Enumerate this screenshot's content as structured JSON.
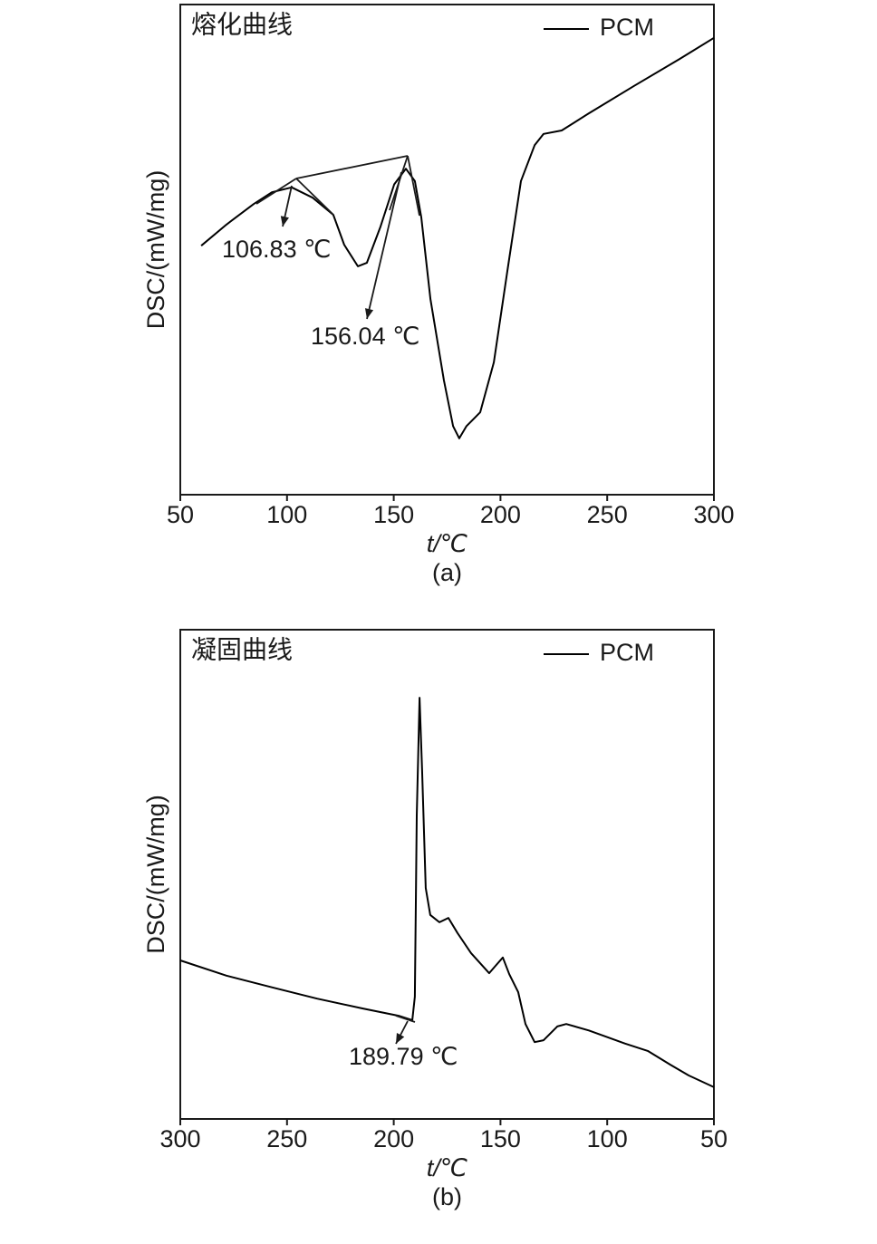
{
  "chart_data": [
    {
      "type": "line",
      "title": "熔化曲线",
      "x_label": "t/℃",
      "y_label": "DSC/(mW/mg)",
      "caption": "(a)",
      "xlim": [
        50,
        300
      ],
      "xticks": [
        50,
        100,
        150,
        200,
        250,
        300
      ],
      "ylim": [
        0,
        100
      ],
      "x": [
        59.8,
        71.6,
        84.4,
        92.9,
        102.2,
        112.0,
        121.7,
        126.8,
        133.2,
        137.4,
        143.8,
        150.2,
        155.7,
        159.9,
        162.9,
        167.2,
        173.5,
        177.8,
        180.7,
        184.1,
        190.5,
        196.9,
        203.2,
        209.6,
        216.0,
        220.2,
        228.7,
        241.4,
        262.6,
        283.9,
        300
      ],
      "series": [
        {
          "name": "PCM",
          "color": "#000000",
          "values": [
            50.8,
            55.1,
            59.3,
            61.7,
            62.7,
            60.6,
            57.1,
            51.0,
            46.6,
            47.3,
            54.7,
            63.3,
            66.5,
            64.0,
            56.6,
            39.9,
            23.3,
            14.0,
            11.5,
            14.0,
            16.8,
            27.0,
            45.5,
            64.0,
            71.3,
            73.6,
            74.3,
            77.8,
            83.4,
            88.9,
            93.2
          ]
        }
      ],
      "annotations": [
        "106.83 ℃",
        "156.04 ℃"
      ],
      "legend": "upper right"
    },
    {
      "type": "line",
      "title": "凝固曲线",
      "x_label": "t/℃",
      "y_label": "DSC/(mW/mg)",
      "caption": "(b)",
      "xlim": [
        300,
        50
      ],
      "xticks": [
        300,
        250,
        200,
        150,
        100,
        50
      ],
      "ylim": [
        0,
        100
      ],
      "x": [
        300,
        278.4,
        257.1,
        235.9,
        214.7,
        197.7,
        191.3,
        190.1,
        189.2,
        187.9,
        186.7,
        185.0,
        182.9,
        178.6,
        174.4,
        170.1,
        163.8,
        155.3,
        151.9,
        148.9,
        145.9,
        141.7,
        138.3,
        134.0,
        129.8,
        123.4,
        119.2,
        108.6,
        91.6,
        81.0,
        70.4,
        61.9,
        50
      ],
      "series": [
        {
          "name": "PCM",
          "color": "#000000",
          "values": [
            32.4,
            29.3,
            26.9,
            24.6,
            22.6,
            21.1,
            20.2,
            25.0,
            62.0,
            86.1,
            71.3,
            47.2,
            41.7,
            40.2,
            41.1,
            38.0,
            33.9,
            29.8,
            31.5,
            33.0,
            29.6,
            25.9,
            19.4,
            15.7,
            16.1,
            18.9,
            19.4,
            18.1,
            15.4,
            13.9,
            11.1,
            8.9,
            6.5
          ]
        }
      ],
      "annotations": [
        "189.79 ℃"
      ],
      "legend": "upper right"
    }
  ]
}
